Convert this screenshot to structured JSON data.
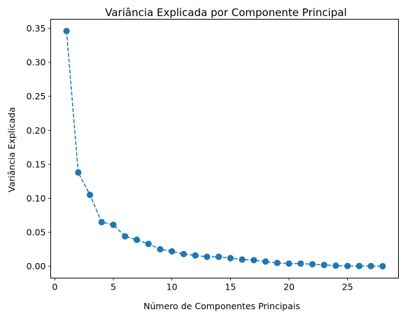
{
  "chart_data": {
    "type": "line",
    "title": "Variância Explicada por Componente Principal",
    "xlabel": "Número de Componentes Principais",
    "ylabel": "Variância Explicada",
    "xlim": [
      -0.35,
      29.35
    ],
    "ylim": [
      -0.0173,
      0.3633
    ],
    "xticks": [
      0,
      5,
      10,
      15,
      20,
      25
    ],
    "yticks": [
      0.0,
      0.05,
      0.1,
      0.15,
      0.2,
      0.25,
      0.3,
      0.35
    ],
    "ytick_labels": [
      "0.00",
      "0.05",
      "0.10",
      "0.15",
      "0.20",
      "0.25",
      "0.30",
      "0.35"
    ],
    "xtick_labels": [
      "0",
      "5",
      "10",
      "15",
      "20",
      "25"
    ],
    "grid": false,
    "line_style": "dashed",
    "marker": "circle",
    "color": "#1f77b4",
    "series": [
      {
        "x": [
          1,
          2,
          3,
          4,
          5,
          6,
          7,
          8,
          9,
          10,
          11,
          12,
          13,
          14,
          15,
          16,
          17,
          18,
          19,
          20,
          21,
          22,
          23,
          24,
          25,
          26,
          27,
          28
        ],
        "values": [
          0.346,
          0.138,
          0.105,
          0.065,
          0.061,
          0.044,
          0.039,
          0.033,
          0.025,
          0.022,
          0.018,
          0.016,
          0.014,
          0.014,
          0.012,
          0.01,
          0.009,
          0.007,
          0.005,
          0.004,
          0.004,
          0.003,
          0.002,
          0.001,
          0.0005,
          0.0005,
          0.0003,
          0.0002
        ]
      }
    ]
  }
}
